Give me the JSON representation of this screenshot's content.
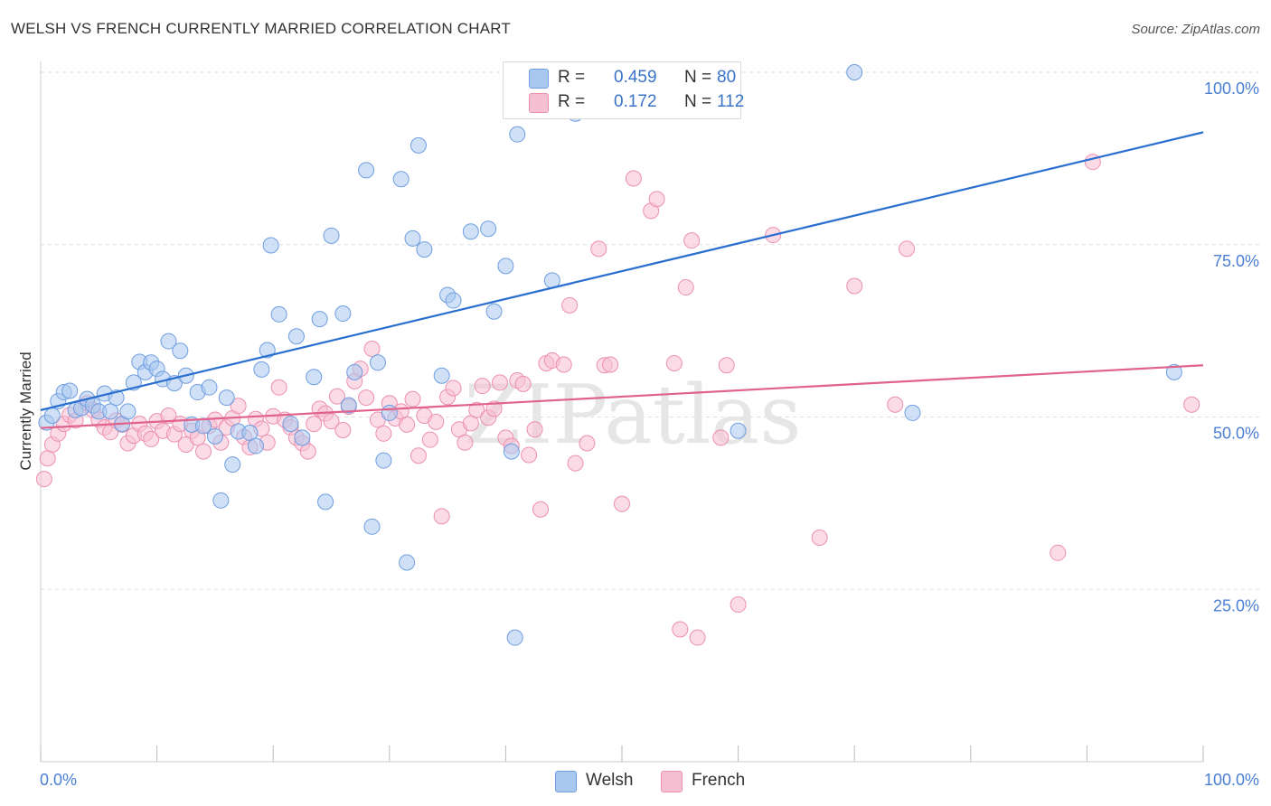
{
  "title": "WELSH VS FRENCH CURRENTLY MARRIED CORRELATION CHART",
  "source": "Source: ZipAtlas.com",
  "colors": {
    "welsh_fill": "#a9c8f0",
    "welsh_stroke": "#6f9ee0",
    "welsh_line": "#2a6fcf",
    "french_fill": "#f7bfd2",
    "french_stroke": "#ec8fb0",
    "french_line": "#e0628d",
    "grid": "#dddddd",
    "tick_label": "#4a7fd4"
  },
  "legend_top": {
    "rows": [
      {
        "r_label": "R =",
        "r_value": "0.459",
        "n_label": "N =",
        "n_value": "80"
      },
      {
        "r_label": "R =",
        "r_value": "0.172",
        "n_label": "N =",
        "n_value": "112"
      }
    ]
  },
  "legend_bottom": [
    "Welsh",
    "French"
  ],
  "chart_data": {
    "type": "scatter",
    "title": "WELSH VS FRENCH CURRENTLY MARRIED CORRELATION CHART",
    "xlabel": "",
    "ylabel": "Currently Married",
    "xlim": [
      0,
      100
    ],
    "ylim": [
      0,
      100
    ],
    "x_tick_labels": [
      "0.0%",
      "100.0%"
    ],
    "y_tick_labels": [
      "25.0%",
      "50.0%",
      "75.0%",
      "100.0%"
    ],
    "y_ticks": [
      25,
      50,
      75,
      100
    ],
    "grid": true,
    "legend": "top-center",
    "watermark": "ZIPatlas",
    "series": [
      {
        "name": "Welsh",
        "r": 0.459,
        "n": 80,
        "trend": {
          "x": [
            0,
            100
          ],
          "y": [
            51.0,
            91.3
          ]
        },
        "points": [
          [
            0.5,
            49.2
          ],
          [
            1.0,
            50.2
          ],
          [
            1.5,
            52.3
          ],
          [
            2.0,
            53.6
          ],
          [
            2.5,
            53.8
          ],
          [
            3.0,
            51.0
          ],
          [
            3.5,
            51.3
          ],
          [
            4.0,
            52.6
          ],
          [
            4.5,
            51.7
          ],
          [
            5.0,
            50.8
          ],
          [
            5.5,
            53.4
          ],
          [
            6.0,
            50.8
          ],
          [
            6.5,
            52.8
          ],
          [
            7.0,
            49.0
          ],
          [
            7.5,
            50.8
          ],
          [
            8.0,
            55.0
          ],
          [
            8.5,
            58.0
          ],
          [
            9.0,
            56.5
          ],
          [
            9.5,
            57.9
          ],
          [
            10.0,
            57.0
          ],
          [
            10.5,
            55.5
          ],
          [
            11.0,
            61.0
          ],
          [
            11.5,
            54.9
          ],
          [
            12.0,
            59.6
          ],
          [
            12.5,
            56.0
          ],
          [
            13.0,
            48.9
          ],
          [
            13.5,
            53.6
          ],
          [
            14.0,
            48.7
          ],
          [
            14.5,
            54.3
          ],
          [
            15.0,
            47.2
          ],
          [
            15.5,
            37.9
          ],
          [
            16.0,
            52.8
          ],
          [
            16.5,
            43.1
          ],
          [
            17.0,
            47.9
          ],
          [
            18.0,
            47.7
          ],
          [
            18.5,
            45.8
          ],
          [
            19.0,
            56.9
          ],
          [
            19.5,
            59.7
          ],
          [
            19.8,
            74.9
          ],
          [
            20.5,
            64.9
          ],
          [
            21.5,
            49.0
          ],
          [
            22.0,
            61.7
          ],
          [
            22.5,
            47.0
          ],
          [
            23.5,
            55.8
          ],
          [
            24.0,
            64.2
          ],
          [
            24.5,
            37.7
          ],
          [
            25.0,
            76.3
          ],
          [
            26.0,
            65.0
          ],
          [
            26.5,
            51.7
          ],
          [
            27.0,
            56.5
          ],
          [
            28.0,
            85.8
          ],
          [
            28.5,
            34.1
          ],
          [
            29.0,
            57.9
          ],
          [
            29.5,
            43.7
          ],
          [
            30.0,
            50.6
          ],
          [
            31.0,
            84.5
          ],
          [
            31.5,
            28.9
          ],
          [
            32.0,
            75.9
          ],
          [
            32.5,
            89.4
          ],
          [
            33.0,
            74.3
          ],
          [
            34.5,
            56.0
          ],
          [
            35.0,
            67.7
          ],
          [
            35.5,
            66.9
          ],
          [
            37.0,
            76.9
          ],
          [
            38.5,
            77.3
          ],
          [
            39.0,
            65.3
          ],
          [
            40.0,
            71.9
          ],
          [
            40.5,
            45.0
          ],
          [
            40.8,
            18.0
          ],
          [
            41.0,
            91.0
          ],
          [
            42.0,
            100.0
          ],
          [
            44.0,
            69.8
          ],
          [
            45.0,
            95.0
          ],
          [
            46.0,
            94.0
          ],
          [
            48.0,
            99.8
          ],
          [
            57.0,
            100.0
          ],
          [
            60.0,
            48.0
          ],
          [
            70.0,
            100.0
          ],
          [
            75.0,
            50.6
          ],
          [
            97.5,
            56.5
          ]
        ]
      },
      {
        "name": "French",
        "r": 0.172,
        "n": 112,
        "trend": {
          "x": [
            0,
            100
          ],
          "y": [
            48.4,
            57.5
          ]
        },
        "points": [
          [
            0.3,
            41.0
          ],
          [
            0.6,
            44.0
          ],
          [
            1.0,
            46.0
          ],
          [
            1.5,
            47.6
          ],
          [
            2.0,
            49.0
          ],
          [
            2.5,
            50.3
          ],
          [
            3.0,
            49.5
          ],
          [
            3.5,
            51.3
          ],
          [
            4.0,
            52.0
          ],
          [
            4.5,
            51.0
          ],
          [
            5.0,
            49.6
          ],
          [
            5.5,
            48.5
          ],
          [
            6.0,
            47.8
          ],
          [
            6.5,
            49.5
          ],
          [
            7.0,
            48.9
          ],
          [
            7.5,
            46.2
          ],
          [
            8.0,
            47.3
          ],
          [
            8.5,
            49.0
          ],
          [
            9.0,
            47.6
          ],
          [
            9.5,
            46.8
          ],
          [
            10.0,
            49.4
          ],
          [
            10.5,
            48.0
          ],
          [
            11.0,
            50.2
          ],
          [
            11.5,
            47.5
          ],
          [
            12.0,
            49.0
          ],
          [
            12.5,
            46.0
          ],
          [
            13.0,
            48.0
          ],
          [
            13.5,
            47.0
          ],
          [
            14.0,
            45.0
          ],
          [
            14.5,
            48.7
          ],
          [
            15.0,
            49.6
          ],
          [
            15.5,
            46.3
          ],
          [
            16.0,
            48.5
          ],
          [
            16.5,
            49.8
          ],
          [
            17.0,
            51.6
          ],
          [
            17.5,
            47.1
          ],
          [
            18.0,
            45.6
          ],
          [
            18.5,
            49.7
          ],
          [
            19.0,
            48.3
          ],
          [
            19.5,
            46.3
          ],
          [
            20.0,
            50.1
          ],
          [
            20.5,
            54.3
          ],
          [
            21.0,
            49.6
          ],
          [
            21.5,
            48.5
          ],
          [
            22.0,
            47.0
          ],
          [
            22.5,
            46.2
          ],
          [
            23.0,
            45.0
          ],
          [
            23.5,
            49.0
          ],
          [
            24.0,
            51.2
          ],
          [
            24.5,
            50.5
          ],
          [
            25.0,
            49.4
          ],
          [
            25.5,
            53.0
          ],
          [
            26.0,
            48.1
          ],
          [
            26.5,
            51.5
          ],
          [
            27.0,
            55.2
          ],
          [
            27.5,
            57.0
          ],
          [
            28.0,
            52.8
          ],
          [
            28.5,
            59.9
          ],
          [
            29.0,
            49.6
          ],
          [
            29.5,
            47.6
          ],
          [
            30.0,
            52.0
          ],
          [
            30.5,
            49.8
          ],
          [
            31.0,
            50.8
          ],
          [
            31.5,
            48.9
          ],
          [
            32.0,
            52.6
          ],
          [
            32.5,
            44.4
          ],
          [
            33.0,
            50.2
          ],
          [
            33.5,
            46.7
          ],
          [
            34.0,
            49.3
          ],
          [
            34.5,
            35.6
          ],
          [
            35.0,
            52.9
          ],
          [
            35.5,
            54.2
          ],
          [
            36.0,
            48.2
          ],
          [
            36.5,
            46.3
          ],
          [
            37.0,
            49.1
          ],
          [
            37.5,
            51.0
          ],
          [
            38.0,
            54.5
          ],
          [
            38.5,
            49.9
          ],
          [
            39.0,
            51.2
          ],
          [
            39.5,
            55.0
          ],
          [
            40.0,
            47.0
          ],
          [
            40.5,
            45.8
          ],
          [
            41.0,
            55.3
          ],
          [
            41.5,
            54.8
          ],
          [
            42.0,
            44.5
          ],
          [
            42.5,
            48.2
          ],
          [
            43.0,
            36.6
          ],
          [
            43.5,
            57.8
          ],
          [
            44.0,
            58.2
          ],
          [
            45.0,
            57.6
          ],
          [
            45.5,
            66.2
          ],
          [
            46.0,
            43.3
          ],
          [
            47.0,
            46.2
          ],
          [
            48.0,
            74.4
          ],
          [
            48.5,
            57.5
          ],
          [
            49.0,
            57.6
          ],
          [
            50.0,
            37.4
          ],
          [
            51.0,
            84.6
          ],
          [
            52.5,
            79.9
          ],
          [
            53.0,
            81.6
          ],
          [
            54.5,
            57.8
          ],
          [
            56.0,
            75.6
          ],
          [
            58.5,
            47.0
          ],
          [
            59.0,
            57.5
          ],
          [
            60.0,
            22.8
          ],
          [
            63.0,
            76.4
          ],
          [
            67.0,
            32.5
          ],
          [
            70.0,
            69.0
          ],
          [
            73.5,
            51.8
          ],
          [
            74.5,
            74.4
          ],
          [
            87.5,
            30.3
          ],
          [
            90.5,
            87.0
          ],
          [
            99.0,
            51.8
          ],
          [
            55.5,
            68.8
          ],
          [
            55.0,
            19.2
          ],
          [
            56.5,
            18.0
          ]
        ]
      }
    ]
  }
}
